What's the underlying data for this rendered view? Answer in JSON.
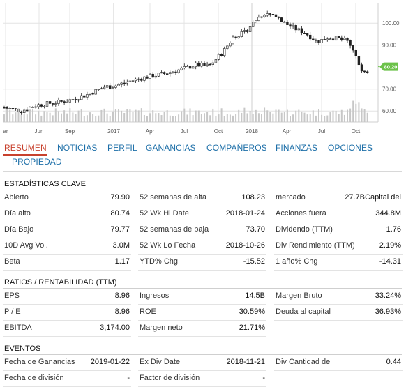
{
  "chart_data": {
    "type": "candlestick",
    "x_tick_labels": [
      "ar",
      "Jun",
      "Sep",
      "2017",
      "Apr",
      "Jul",
      "Oct",
      "2018",
      "Apr",
      "Jul",
      "Oct"
    ],
    "y_tick_labels": [
      "100.00",
      "90.00",
      "80.20",
      "70.00",
      "60.00"
    ],
    "ylim": [
      55,
      108
    ],
    "last_price": "80.20",
    "last_price_value": 80.2,
    "price_path": [
      [
        0,
        62.0
      ],
      [
        30,
        60.0
      ],
      [
        50,
        62.5
      ],
      [
        70,
        63.5
      ],
      [
        95,
        64.5
      ],
      [
        125,
        67.5
      ],
      [
        150,
        71.0
      ],
      [
        165,
        71.5
      ],
      [
        185,
        73.5
      ],
      [
        210,
        75.5
      ],
      [
        235,
        77.0
      ],
      [
        260,
        79.0
      ],
      [
        280,
        81.0
      ],
      [
        300,
        80.5
      ],
      [
        320,
        87.0
      ],
      [
        335,
        94.0
      ],
      [
        350,
        95.5
      ],
      [
        365,
        101.0
      ],
      [
        378,
        104.5
      ],
      [
        392,
        104.0
      ],
      [
        405,
        100.5
      ],
      [
        420,
        98.0
      ],
      [
        440,
        95.0
      ],
      [
        455,
        91.5
      ],
      [
        470,
        93.5
      ],
      [
        485,
        93.0
      ],
      [
        500,
        91.5
      ],
      [
        510,
        86.0
      ],
      [
        517,
        78.0
      ],
      [
        524,
        76.5
      ],
      [
        530,
        80.2
      ]
    ],
    "colors": {
      "up": "#ffffff",
      "down": "#222222",
      "volume": "#c7c7c7",
      "price_tag": "#6cc24a",
      "grid": "#e4e4e4"
    }
  },
  "tabs": [
    {
      "label": "RESUMEN",
      "active": true
    },
    {
      "label": "NOTICIAS"
    },
    {
      "label": "PERFIL"
    },
    {
      "label": "GANANCIAS"
    },
    {
      "label": "COMPAÑEROS"
    },
    {
      "label": "FINANZAS"
    },
    {
      "label": "OPCIONES"
    },
    {
      "label": "PROPIEDAD"
    }
  ],
  "key_stats": {
    "title": "ESTADÍSTICAS CLAVE",
    "rows": [
      [
        {
          "label": "Abierto",
          "value": "79.90"
        },
        {
          "label": "52 semanas de alta",
          "value": "108.23"
        },
        {
          "label": "mercado",
          "value": "27.7BCapital del"
        }
      ],
      [
        {
          "label": "Día alto",
          "value": "80.74"
        },
        {
          "label": "52 Wk Hi Date",
          "value": "2018-01-24"
        },
        {
          "label": "Acciones fuera",
          "value": "344.8M"
        }
      ],
      [
        {
          "label": "Día Bajo",
          "value": "79.77"
        },
        {
          "label": "52 semanas de baja",
          "value": "73.70"
        },
        {
          "label": "Dividendo (TTM)",
          "value": "1.76"
        }
      ],
      [
        {
          "label": "10D Avg Vol.",
          "value": "3.0M"
        },
        {
          "label": "52 Wk Lo Fecha",
          "value": "2018-10-26"
        },
        {
          "label": "Div Rendimiento (TTM)",
          "value": "2.19%"
        }
      ],
      [
        {
          "label": "Beta",
          "value": "1.17"
        },
        {
          "label": "YTD% Chg",
          "value": "-15.52"
        },
        {
          "label": "1 año% Chg",
          "value": "-14.31"
        }
      ]
    ]
  },
  "ratios": {
    "title": "RATIOS / RENTABILIDAD (TTM)",
    "rows": [
      [
        {
          "label": "EPS",
          "value": "8.96"
        },
        {
          "label": "Ingresos",
          "value": "14.5B"
        },
        {
          "label": "Margen Bruto",
          "value": "33.24%"
        }
      ],
      [
        {
          "label": "P / E",
          "value": "8.96"
        },
        {
          "label": "ROE",
          "value": "30.59%"
        },
        {
          "label": "Deuda al capital",
          "value": "36.93%"
        }
      ],
      [
        {
          "label": "EBITDA",
          "value": "3,174.00"
        },
        {
          "label": "Margen neto",
          "value": "21.71%"
        },
        {
          "label": "",
          "value": ""
        }
      ]
    ]
  },
  "events": {
    "title": "EVENTOS",
    "rows": [
      [
        {
          "label": "Fecha de Ganancias",
          "value": "2019-01-22"
        },
        {
          "label": "Ex Div Date",
          "value": "2018-11-21"
        },
        {
          "label": "Div Cantidad de",
          "value": "0.44"
        }
      ],
      [
        {
          "label": "Fecha de división",
          "value": "-"
        },
        {
          "label": "Factor de división",
          "value": "-"
        },
        {
          "label": "",
          "value": ""
        }
      ]
    ]
  }
}
